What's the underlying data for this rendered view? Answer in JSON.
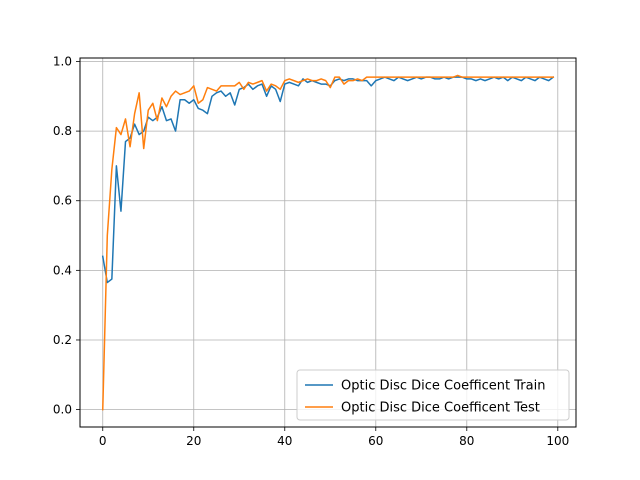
{
  "chart_data": {
    "type": "line",
    "title": "",
    "xlabel": "",
    "ylabel": "",
    "xlim": [
      -5,
      104
    ],
    "ylim": [
      -0.05,
      1.01
    ],
    "xticks": [
      0,
      20,
      40,
      60,
      80,
      100
    ],
    "yticks": [
      0.0,
      0.2,
      0.4,
      0.6,
      0.8,
      1.0
    ],
    "xtick_labels": [
      "0",
      "20",
      "40",
      "60",
      "80",
      "100"
    ],
    "ytick_labels": [
      "0.0",
      "0.2",
      "0.4",
      "0.6",
      "0.8",
      "1.0"
    ],
    "grid": true,
    "legend_position": "lower-right",
    "series": [
      {
        "name": "Optic Disc Dice Coefficent Train",
        "color": "#1f77b4",
        "x": [
          0,
          1,
          2,
          3,
          4,
          5,
          6,
          7,
          8,
          9,
          10,
          11,
          12,
          13,
          14,
          15,
          16,
          17,
          18,
          19,
          20,
          21,
          22,
          23,
          24,
          25,
          26,
          27,
          28,
          29,
          30,
          31,
          32,
          33,
          34,
          35,
          36,
          37,
          38,
          39,
          40,
          41,
          42,
          43,
          44,
          45,
          46,
          47,
          48,
          49,
          50,
          51,
          52,
          53,
          54,
          55,
          56,
          57,
          58,
          59,
          60,
          61,
          62,
          63,
          64,
          65,
          66,
          67,
          68,
          69,
          70,
          71,
          72,
          73,
          74,
          75,
          76,
          77,
          78,
          79,
          80,
          81,
          82,
          83,
          84,
          85,
          86,
          87,
          88,
          89,
          90,
          91,
          92,
          93,
          94,
          95,
          96,
          97,
          98,
          99
        ],
        "values": [
          0.44,
          0.365,
          0.375,
          0.7,
          0.57,
          0.77,
          0.78,
          0.82,
          0.79,
          0.8,
          0.84,
          0.83,
          0.84,
          0.87,
          0.83,
          0.835,
          0.8,
          0.89,
          0.89,
          0.88,
          0.89,
          0.865,
          0.86,
          0.85,
          0.9,
          0.91,
          0.915,
          0.9,
          0.91,
          0.875,
          0.92,
          0.925,
          0.935,
          0.92,
          0.93,
          0.935,
          0.9,
          0.93,
          0.92,
          0.885,
          0.935,
          0.94,
          0.935,
          0.93,
          0.95,
          0.94,
          0.945,
          0.94,
          0.935,
          0.935,
          0.93,
          0.945,
          0.95,
          0.945,
          0.95,
          0.95,
          0.945,
          0.945,
          0.945,
          0.93,
          0.945,
          0.95,
          0.955,
          0.95,
          0.945,
          0.955,
          0.95,
          0.945,
          0.95,
          0.955,
          0.95,
          0.955,
          0.955,
          0.95,
          0.95,
          0.955,
          0.95,
          0.955,
          0.955,
          0.955,
          0.95,
          0.95,
          0.945,
          0.95,
          0.945,
          0.95,
          0.955,
          0.95,
          0.955,
          0.945,
          0.955,
          0.95,
          0.945,
          0.955,
          0.95,
          0.945,
          0.955,
          0.95,
          0.945,
          0.955
        ]
      },
      {
        "name": "Optic Disc Dice Coefficent Test",
        "color": "#ff7f0e",
        "x": [
          0,
          1,
          2,
          3,
          4,
          5,
          6,
          7,
          8,
          9,
          10,
          11,
          12,
          13,
          14,
          15,
          16,
          17,
          18,
          19,
          20,
          21,
          22,
          23,
          24,
          25,
          26,
          27,
          28,
          29,
          30,
          31,
          32,
          33,
          34,
          35,
          36,
          37,
          38,
          39,
          40,
          41,
          42,
          43,
          44,
          45,
          46,
          47,
          48,
          49,
          50,
          51,
          52,
          53,
          54,
          55,
          56,
          57,
          58,
          59,
          60,
          61,
          62,
          63,
          64,
          65,
          66,
          67,
          68,
          69,
          70,
          71,
          72,
          73,
          74,
          75,
          76,
          77,
          78,
          79,
          80,
          81,
          82,
          83,
          84,
          85,
          86,
          87,
          88,
          89,
          90,
          91,
          92,
          93,
          94,
          95,
          96,
          97,
          98,
          99
        ],
        "values": [
          0.0,
          0.5,
          0.69,
          0.81,
          0.79,
          0.835,
          0.755,
          0.85,
          0.91,
          0.75,
          0.86,
          0.88,
          0.83,
          0.895,
          0.87,
          0.9,
          0.915,
          0.905,
          0.91,
          0.915,
          0.93,
          0.88,
          0.89,
          0.925,
          0.92,
          0.915,
          0.93,
          0.93,
          0.93,
          0.93,
          0.94,
          0.92,
          0.94,
          0.935,
          0.94,
          0.945,
          0.915,
          0.935,
          0.93,
          0.92,
          0.945,
          0.95,
          0.945,
          0.94,
          0.945,
          0.95,
          0.945,
          0.945,
          0.95,
          0.945,
          0.925,
          0.955,
          0.955,
          0.935,
          0.945,
          0.945,
          0.95,
          0.945,
          0.955,
          0.955,
          0.955,
          0.955,
          0.955,
          0.955,
          0.955,
          0.955,
          0.955,
          0.955,
          0.955,
          0.955,
          0.955,
          0.955,
          0.955,
          0.955,
          0.955,
          0.955,
          0.955,
          0.955,
          0.96,
          0.955,
          0.955,
          0.955,
          0.955,
          0.955,
          0.955,
          0.955,
          0.955,
          0.955,
          0.955,
          0.955,
          0.955,
          0.955,
          0.955,
          0.955,
          0.955,
          0.955,
          0.955,
          0.955,
          0.955,
          0.955
        ]
      }
    ]
  }
}
